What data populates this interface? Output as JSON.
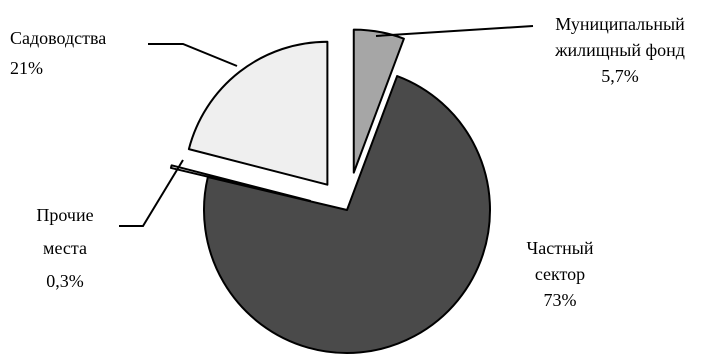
{
  "chart_data": {
    "type": "pie",
    "slices": [
      {
        "id": "municipal",
        "lines": [
          "Муниципальный",
          "жилищный фонд",
          "5,7%"
        ],
        "value": 5.7,
        "color": "#a6a6a6"
      },
      {
        "id": "private",
        "lines": [
          "Частный",
          "сектор",
          "73%"
        ],
        "value": 73,
        "color": "#4a4a4a"
      },
      {
        "id": "other",
        "lines": [
          "Прочие",
          "места",
          "0,3%"
        ],
        "value": 0.3,
        "color": "#efefef"
      },
      {
        "id": "gardening",
        "lines": [
          "Садоводства",
          "21%"
        ],
        "value": 21,
        "color": "#efefef"
      }
    ]
  }
}
